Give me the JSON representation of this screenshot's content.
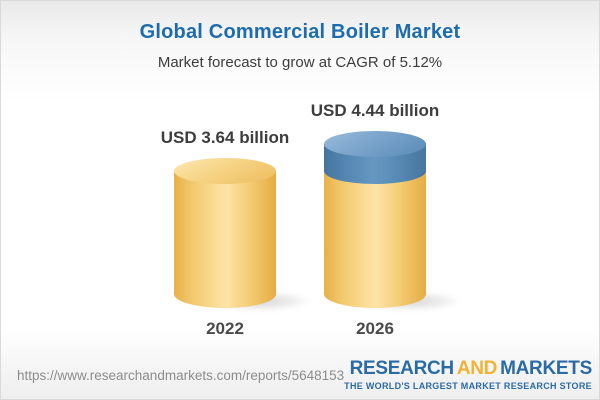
{
  "header": {
    "title": "Global Commercial Boiler Market",
    "subtitle": "Market forecast to grow at CAGR of 5.12%",
    "title_color": "#1d6cae"
  },
  "chart_data": {
    "type": "bar",
    "variant": "3d-cylinder",
    "categories": [
      "2022",
      "2026"
    ],
    "values": [
      3.64,
      4.44
    ],
    "value_labels": [
      "USD 3.64 billion",
      "USD 4.44 billion"
    ],
    "unit": "USD billion",
    "title": "Global Commercial Boiler Market",
    "subtitle": "Market forecast to grow at CAGR of 5.12%",
    "cagr_percent": 5.12,
    "ylim": [
      0,
      5
    ],
    "grid": false,
    "legend": false,
    "base_color": "#f5cd76",
    "growth_color": "#5b8eba",
    "growth_note": "blue cap on 2026 cylinder represents growth above the 2022 value"
  },
  "footer": {
    "url": "https://www.researchandmarkets.com/reports/5648153",
    "logo": {
      "part1": "RESEARCH",
      "part2": "AND",
      "part3": "MARKETS",
      "tagline": "THE WORLD'S LARGEST MARKET RESEARCH STORE",
      "blue": "#2a6ba6",
      "gold": "#f2b233"
    }
  }
}
